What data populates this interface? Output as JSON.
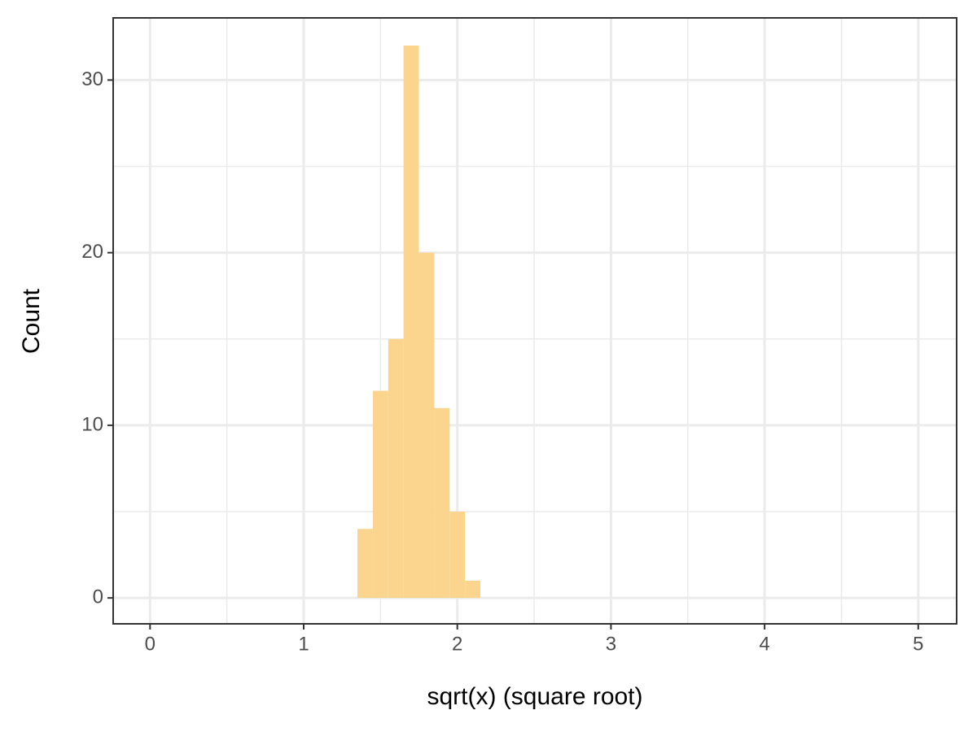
{
  "chart_data": {
    "type": "histogram",
    "x_label": "sqrt(x) (square root)",
    "y_label": "Count",
    "bins": [
      1.35,
      1.45,
      1.55,
      1.65,
      1.75,
      1.85,
      1.95,
      2.05,
      2.15
    ],
    "values": [
      4,
      12,
      15,
      32,
      20,
      11,
      5,
      1
    ],
    "color": "#fbd58e",
    "xlim": [
      -0.24,
      5.25
    ],
    "ylim": [
      -1.5,
      33.6
    ],
    "xticks": [
      0,
      1,
      2,
      3,
      4,
      5
    ],
    "yticks": [
      0,
      10,
      20,
      30
    ],
    "grid": true
  }
}
